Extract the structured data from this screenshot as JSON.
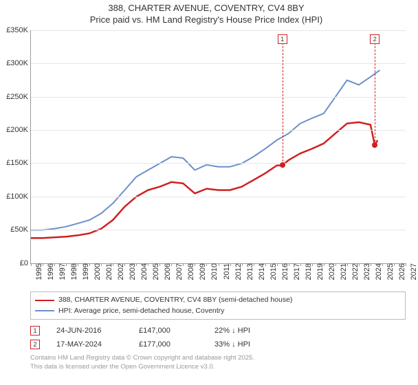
{
  "title_line1": "388, CHARTER AVENUE, COVENTRY, CV4 8BY",
  "title_line2": "Price paid vs. HM Land Registry's House Price Index (HPI)",
  "chart": {
    "type": "line",
    "background_color": "#ffffff",
    "grid_color": "#e6e6e6",
    "axis_color": "#999999",
    "xlim": [
      1995,
      2027
    ],
    "ylim": [
      0,
      350000
    ],
    "ytick_step": 50000,
    "ytick_labels": [
      "£0",
      "£50K",
      "£100K",
      "£150K",
      "£200K",
      "£250K",
      "£300K",
      "£350K"
    ],
    "xticks": [
      1995,
      1996,
      1997,
      1998,
      1999,
      2000,
      2001,
      2002,
      2003,
      2004,
      2005,
      2006,
      2007,
      2008,
      2009,
      2010,
      2011,
      2012,
      2013,
      2014,
      2015,
      2016,
      2017,
      2018,
      2019,
      2020,
      2021,
      2022,
      2023,
      2024,
      2025,
      2026,
      2027
    ],
    "label_fontsize": 11,
    "series": [
      {
        "name": "property",
        "color": "#d01f1f",
        "line_width": 2.5,
        "points": [
          [
            1995,
            38000
          ],
          [
            1996,
            38000
          ],
          [
            1997,
            39000
          ],
          [
            1998,
            40000
          ],
          [
            1999,
            42000
          ],
          [
            2000,
            45000
          ],
          [
            2001,
            52000
          ],
          [
            2002,
            65000
          ],
          [
            2003,
            85000
          ],
          [
            2004,
            100000
          ],
          [
            2005,
            110000
          ],
          [
            2006,
            115000
          ],
          [
            2007,
            122000
          ],
          [
            2008,
            120000
          ],
          [
            2009,
            105000
          ],
          [
            2010,
            112000
          ],
          [
            2011,
            110000
          ],
          [
            2012,
            110000
          ],
          [
            2013,
            115000
          ],
          [
            2014,
            125000
          ],
          [
            2015,
            135000
          ],
          [
            2016,
            147000
          ],
          [
            2016.47,
            147000
          ],
          [
            2017,
            155000
          ],
          [
            2018,
            165000
          ],
          [
            2019,
            172000
          ],
          [
            2020,
            180000
          ],
          [
            2021,
            195000
          ],
          [
            2022,
            210000
          ],
          [
            2023,
            212000
          ],
          [
            2024,
            208000
          ],
          [
            2024.37,
            177000
          ],
          [
            2024.6,
            185000
          ]
        ]
      },
      {
        "name": "hpi",
        "color": "#6a8fc9",
        "line_width": 2,
        "points": [
          [
            1995,
            50000
          ],
          [
            1996,
            50000
          ],
          [
            1997,
            52000
          ],
          [
            1998,
            55000
          ],
          [
            1999,
            60000
          ],
          [
            2000,
            65000
          ],
          [
            2001,
            75000
          ],
          [
            2002,
            90000
          ],
          [
            2003,
            110000
          ],
          [
            2004,
            130000
          ],
          [
            2005,
            140000
          ],
          [
            2006,
            150000
          ],
          [
            2007,
            160000
          ],
          [
            2008,
            158000
          ],
          [
            2009,
            140000
          ],
          [
            2010,
            148000
          ],
          [
            2011,
            145000
          ],
          [
            2012,
            145000
          ],
          [
            2013,
            150000
          ],
          [
            2014,
            160000
          ],
          [
            2015,
            172000
          ],
          [
            2016,
            185000
          ],
          [
            2017,
            195000
          ],
          [
            2018,
            210000
          ],
          [
            2019,
            218000
          ],
          [
            2020,
            225000
          ],
          [
            2021,
            250000
          ],
          [
            2022,
            275000
          ],
          [
            2023,
            268000
          ],
          [
            2024,
            280000
          ],
          [
            2024.8,
            290000
          ]
        ]
      }
    ],
    "markers": [
      {
        "num": "1",
        "x": 2016.47,
        "y": 147000,
        "box_y_top": true,
        "dot_color": "#d01f1f"
      },
      {
        "num": "2",
        "x": 2024.37,
        "y": 177000,
        "box_y_top": true,
        "dot_color": "#d01f1f"
      }
    ]
  },
  "legend": {
    "items": [
      {
        "color": "#d01f1f",
        "label": "388, CHARTER AVENUE, COVENTRY, CV4 8BY (semi-detached house)"
      },
      {
        "color": "#6a8fc9",
        "label": "HPI: Average price, semi-detached house, Coventry"
      }
    ]
  },
  "transactions": [
    {
      "num": "1",
      "date": "24-JUN-2016",
      "price": "£147,000",
      "delta": "22% ↓ HPI"
    },
    {
      "num": "2",
      "date": "17-MAY-2024",
      "price": "£177,000",
      "delta": "33% ↓ HPI"
    }
  ],
  "footer_line1": "Contains HM Land Registry data © Crown copyright and database right 2025.",
  "footer_line2": "This data is licensed under the Open Government Licence v3.0."
}
